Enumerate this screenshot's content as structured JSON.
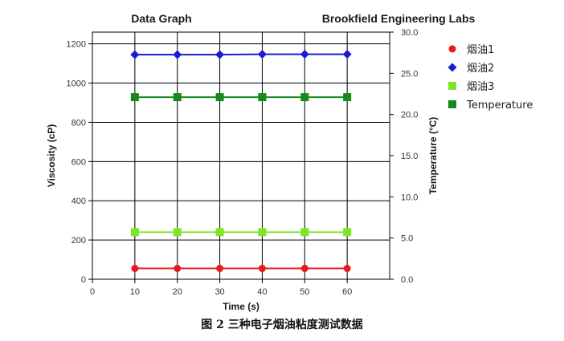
{
  "chart_data": {
    "type": "line",
    "title": "Data Graph",
    "subtitle": "Brookfield Engineering Labs",
    "xlabel": "Time (s)",
    "ylabel": "Viscosity (cP)",
    "y2label": "Temperature (°C)",
    "xlim": [
      0,
      70
    ],
    "ylim": [
      0,
      1260
    ],
    "y2lim": [
      0,
      30
    ],
    "x_ticks": [
      "0",
      "10",
      "20",
      "30",
      "40",
      "50",
      "60"
    ],
    "y_ticks": [
      "0",
      "200",
      "400",
      "600",
      "800",
      "1000",
      "1200"
    ],
    "y2_ticks": [
      "0.0",
      "5.0",
      "10.0",
      "15.0",
      "20.0",
      "25.0",
      "30.0"
    ],
    "grid": true,
    "legend_position": "right",
    "x": [
      10,
      20,
      30,
      40,
      50,
      60
    ],
    "series": [
      {
        "name": "烟油1",
        "axis": "left",
        "marker": "circle",
        "color": "#e8191e",
        "values": [
          55,
          55,
          55,
          55,
          55,
          55
        ]
      },
      {
        "name": "烟油2",
        "axis": "left",
        "marker": "diamond",
        "color": "#1a1ad6",
        "values": [
          1145,
          1145,
          1145,
          1147,
          1147,
          1147
        ]
      },
      {
        "name": "烟油3",
        "axis": "left",
        "marker": "square",
        "color": "#7fe52a",
        "values": [
          240,
          240,
          240,
          240,
          240,
          240
        ]
      },
      {
        "name": "Temperature",
        "axis": "right",
        "marker": "square",
        "color": "#168a1c",
        "values": [
          22.1,
          22.1,
          22.1,
          22.1,
          22.1,
          22.1
        ]
      }
    ]
  },
  "caption": "图 2  三种电子烟油粘度测试数据"
}
